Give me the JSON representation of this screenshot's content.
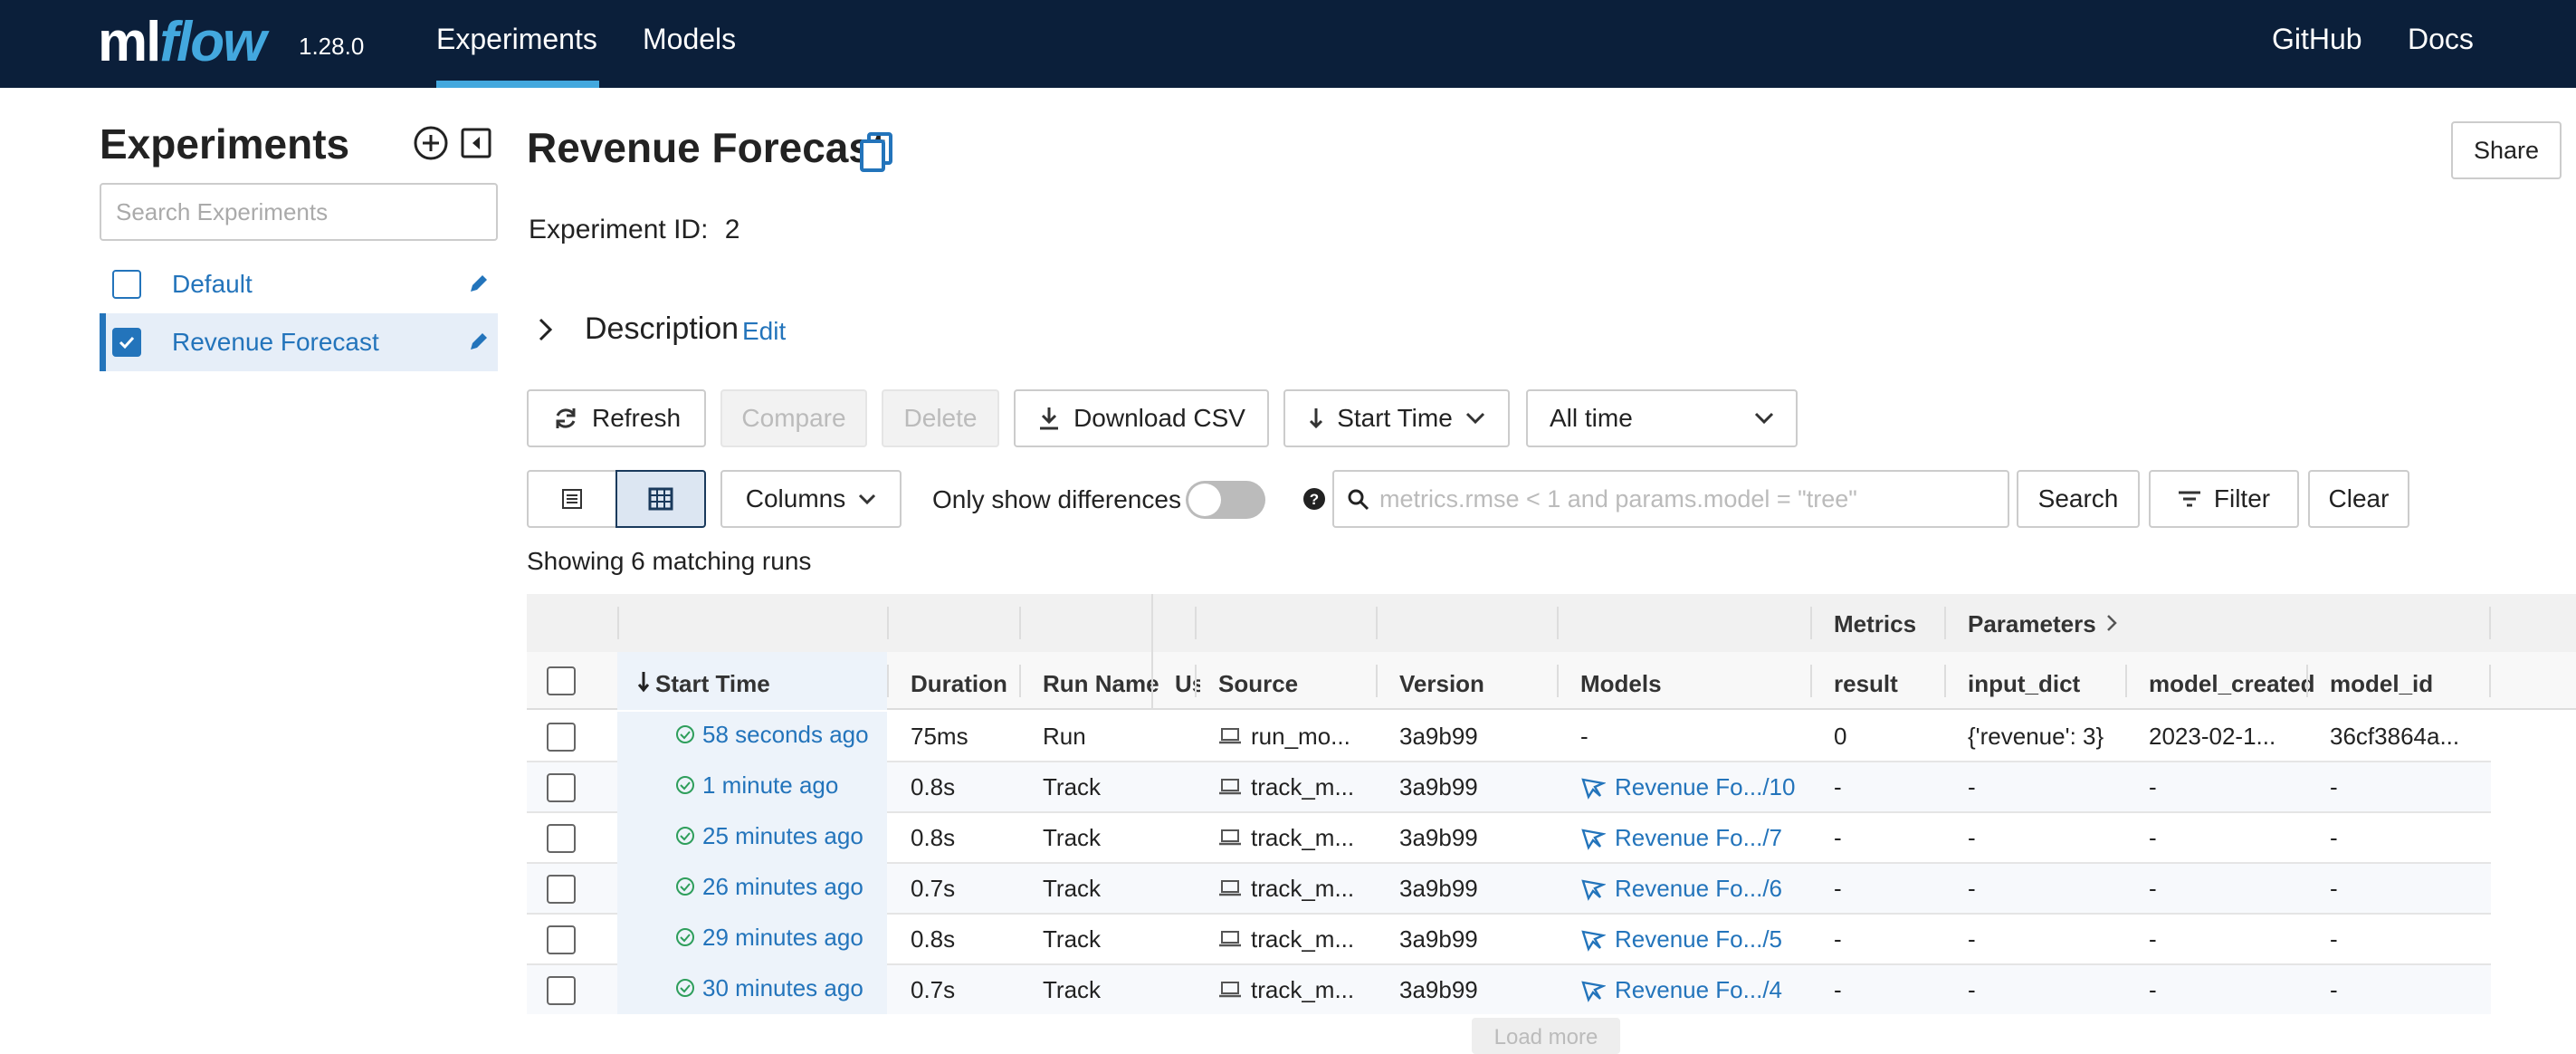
{
  "app": {
    "logo_ml": "ml",
    "logo_flow": "flow",
    "version": "1.28.0",
    "nav": [
      "Experiments",
      "Models"
    ],
    "nav_right": [
      "GitHub",
      "Docs"
    ]
  },
  "sidebar": {
    "title": "Experiments",
    "search_placeholder": "Search Experiments",
    "experiments": [
      {
        "name": "Default",
        "checked": false
      },
      {
        "name": "Revenue Forecast",
        "checked": true
      }
    ]
  },
  "main": {
    "title": "Revenue Forecast",
    "share_label": "Share",
    "experiment_id_label": "Experiment ID:",
    "experiment_id": "2",
    "description_label": "Description",
    "edit_label": "Edit",
    "toolbar": {
      "refresh": "Refresh",
      "compare": "Compare",
      "delete": "Delete",
      "download": "Download CSV",
      "sort": "Start Time",
      "time_range": "All time"
    },
    "controls": {
      "columns": "Columns",
      "only_diff": "Only show differences",
      "search_placeholder": "metrics.rmse < 1 and params.model = \"tree\"",
      "search": "Search",
      "filter": "Filter",
      "clear": "Clear"
    },
    "showing": "Showing 6 matching runs",
    "load_more": "Load more"
  },
  "grid": {
    "group_headers": [
      "Metrics",
      "Parameters"
    ],
    "columns": [
      "Start Time",
      "Duration",
      "Run Name",
      "Us",
      "Source",
      "Version",
      "Models",
      "result",
      "input_dict",
      "model_created",
      "model_id"
    ],
    "rows": [
      {
        "start": "58 seconds ago",
        "duration": "75ms",
        "run_name": "Run",
        "source": "run_mo...",
        "version": "3a9b99",
        "model": "-",
        "result": "0",
        "input_dict": "{'revenue': 3}",
        "model_created": "2023-02-1...",
        "model_id": "36cf3864a..."
      },
      {
        "start": "1 minute ago",
        "duration": "0.8s",
        "run_name": "Track",
        "source": "track_m...",
        "version": "3a9b99",
        "model": "Revenue Fo.../10",
        "result": "-",
        "input_dict": "-",
        "model_created": "-",
        "model_id": "-"
      },
      {
        "start": "25 minutes ago",
        "duration": "0.8s",
        "run_name": "Track",
        "source": "track_m...",
        "version": "3a9b99",
        "model": "Revenue Fo.../7",
        "result": "-",
        "input_dict": "-",
        "model_created": "-",
        "model_id": "-"
      },
      {
        "start": "26 minutes ago",
        "duration": "0.7s",
        "run_name": "Track",
        "source": "track_m...",
        "version": "3a9b99",
        "model": "Revenue Fo.../6",
        "result": "-",
        "input_dict": "-",
        "model_created": "-",
        "model_id": "-"
      },
      {
        "start": "29 minutes ago",
        "duration": "0.8s",
        "run_name": "Track",
        "source": "track_m...",
        "version": "3a9b99",
        "model": "Revenue Fo.../5",
        "result": "-",
        "input_dict": "-",
        "model_created": "-",
        "model_id": "-"
      },
      {
        "start": "30 minutes ago",
        "duration": "0.7s",
        "run_name": "Track",
        "source": "track_m...",
        "version": "3a9b99",
        "model": "Revenue Fo.../4",
        "result": "-",
        "input_dict": "-",
        "model_created": "-",
        "model_id": "-"
      }
    ]
  },
  "colors": {
    "topbar": "#0b1f3a",
    "accent": "#43a8de",
    "link": "#2374bb",
    "success": "#2e9e5b"
  }
}
